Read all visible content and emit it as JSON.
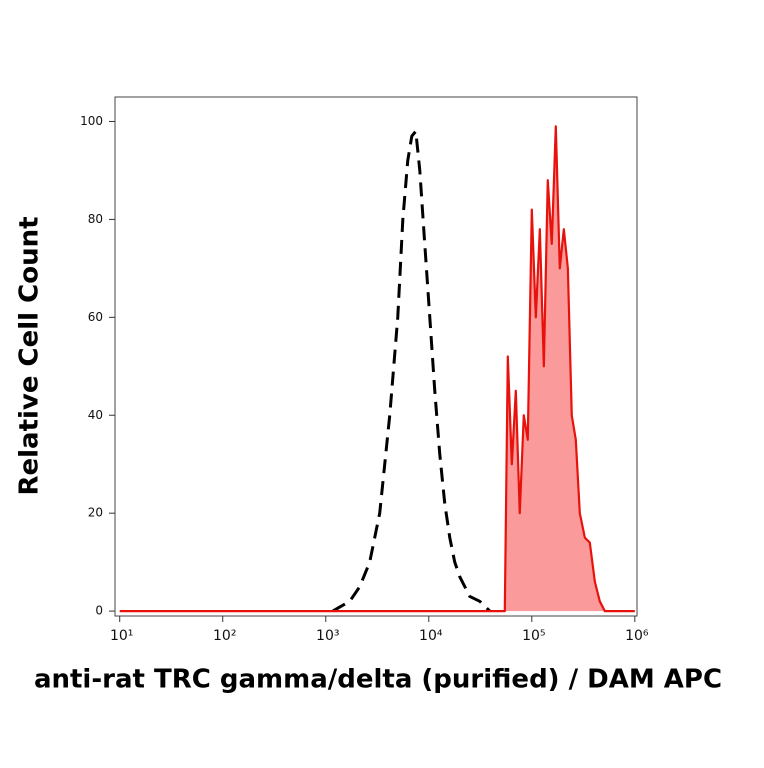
{
  "chart_data": {
    "type": "histogram-line",
    "xlabel": "anti-rat TRC gamma/delta (purified) / DAM APC",
    "ylabel": "Relative Cell Count",
    "xscale": "log",
    "xlim": [
      9,
      1050000
    ],
    "xticks": [
      {
        "value": 10,
        "label": "10¹"
      },
      {
        "value": 100,
        "label": "10²"
      },
      {
        "value": 1000,
        "label": "10³"
      },
      {
        "value": 10000,
        "label": "10⁴"
      },
      {
        "value": 100000,
        "label": "10⁵"
      },
      {
        "value": 1000000,
        "label": "10⁶"
      }
    ],
    "ylim": [
      -1,
      105
    ],
    "yticks": [
      0,
      20,
      40,
      60,
      80,
      100
    ],
    "series": [
      {
        "color": "#000000",
        "dashed": true,
        "x": [
          1170,
          1710,
          2140,
          2670,
          3340,
          4180,
          5000,
          5600,
          6250,
          6840,
          7480,
          8180,
          9140,
          10230,
          11430,
          12790,
          14290,
          15990,
          17870,
          20000,
          25000,
          31260,
          39090
        ],
        "values": [
          0,
          2,
          5,
          10,
          20,
          40,
          60,
          80,
          92,
          97,
          98,
          90,
          75,
          60,
          45,
          32,
          22,
          15,
          10,
          7,
          3,
          2,
          0
        ]
      },
      {
        "color": "#e8120c",
        "fill": "#fb9a9a",
        "dashed": false,
        "x": [
          10,
          54700,
          58500,
          64000,
          69950,
          76400,
          83600,
          91400,
          100000,
          109400,
          119700,
          130900,
          142900,
          156300,
          171000,
          187000,
          204600,
          223900,
          244300,
          267300,
          292400,
          327300,
          365600,
          409300,
          457100,
          511700,
          571500,
          1000000
        ],
        "values": [
          0,
          0,
          52,
          30,
          45,
          20,
          40,
          35,
          82,
          60,
          78,
          50,
          88,
          75,
          99,
          70,
          78,
          70,
          40,
          35,
          20,
          15,
          14,
          6,
          2,
          0,
          0,
          0
        ]
      }
    ]
  }
}
